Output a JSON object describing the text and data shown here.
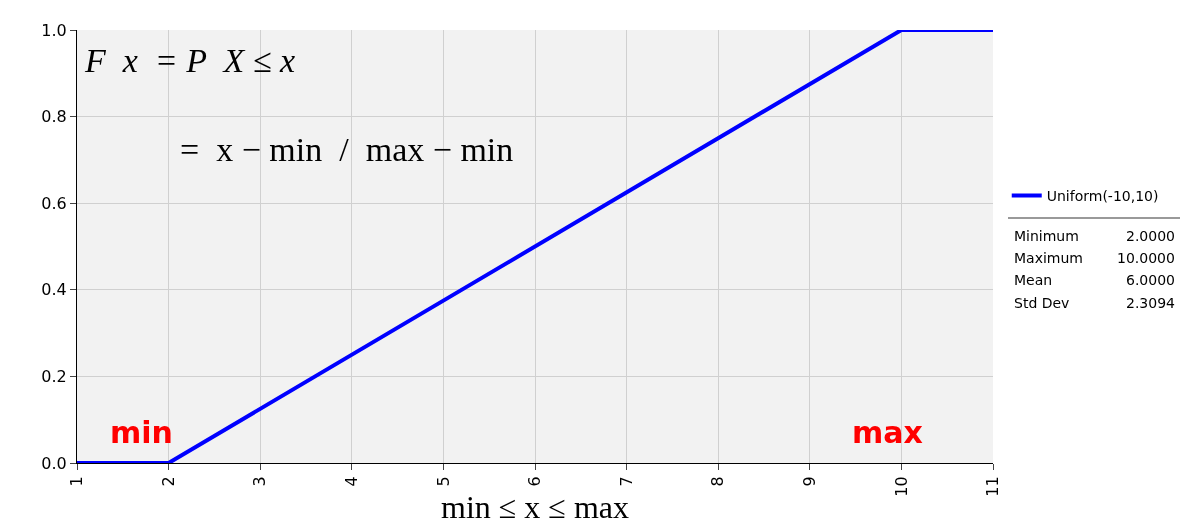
{
  "chart_data": {
    "type": "line",
    "xlabel": "min ≤ x ≤ max",
    "series": [
      {
        "name": "Uniform(-10,10)",
        "color": "#0000ff",
        "x": [
          1,
          2,
          10,
          11
        ],
        "values": [
          0,
          0,
          1,
          1
        ]
      }
    ],
    "xlim": [
      1,
      11
    ],
    "xticks": [
      1,
      2,
      3,
      4,
      5,
      6,
      7,
      8,
      9,
      10,
      11
    ],
    "ylim": [
      0,
      1
    ],
    "yticks": [
      {
        "value": 0,
        "label": "0.0"
      },
      {
        "value": 0.2,
        "label": "0.2"
      },
      {
        "value": 0.4,
        "label": "0.4"
      },
      {
        "value": 0.6,
        "label": "0.6"
      },
      {
        "value": 0.8,
        "label": "0.8"
      },
      {
        "value": 1,
        "label": "1.0"
      }
    ],
    "grid": true,
    "legend": "right",
    "marker": "none",
    "line_style": "solid",
    "annotations": [
      "F  x  = P  X ≤ x",
      "=  x − min  /  max − min",
      "min",
      "max",
      "Minimum",
      "2.0000",
      "Maximum",
      "10.0000",
      "Mean",
      "6.0000",
      "Std Dev",
      "2.3094"
    ]
  }
}
